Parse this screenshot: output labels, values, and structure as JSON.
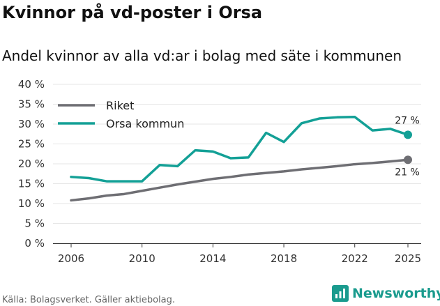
{
  "title": "Kvinnor på vd-poster i Orsa",
  "subtitle": "Andel kvinnor av alla vd:ar i bolag med säte i kommunen",
  "source": "Källa: Bolagsverket. Gäller aktiebolag.",
  "brand": {
    "name": "Newsworthy",
    "icon": "newsworthy-logo-icon",
    "color": "#1a9b8e"
  },
  "chart_data": {
    "type": "line",
    "x": [
      2006,
      2007,
      2008,
      2009,
      2010,
      2011,
      2012,
      2013,
      2014,
      2015,
      2016,
      2017,
      2018,
      2019,
      2020,
      2021,
      2022,
      2023,
      2024,
      2025
    ],
    "series": [
      {
        "name": "Riket",
        "color": "#6e6e73",
        "values": [
          10.8,
          11.3,
          12.0,
          12.4,
          13.2,
          14.0,
          14.8,
          15.5,
          16.2,
          16.7,
          17.3,
          17.7,
          18.1,
          18.6,
          19.0,
          19.4,
          19.9,
          20.2,
          20.6,
          21.0
        ],
        "end_label": "21 %"
      },
      {
        "name": "Orsa kommun",
        "color": "#13a096",
        "values": [
          16.7,
          16.4,
          15.6,
          15.6,
          15.6,
          19.7,
          19.4,
          23.4,
          23.1,
          21.4,
          21.6,
          27.8,
          25.5,
          30.2,
          31.4,
          31.7,
          31.8,
          28.4,
          28.8,
          27.3
        ],
        "end_label": "27 %"
      }
    ],
    "ylim": [
      0,
      40
    ],
    "yticks": [
      "0 %",
      "5 %",
      "10 %",
      "15 %",
      "20 %",
      "25 %",
      "30 %",
      "35 %",
      "40 %"
    ],
    "xticks": [
      "2006",
      "2010",
      "2014",
      "2018",
      "2022",
      "2025"
    ],
    "xlabel": "",
    "ylabel": "",
    "legend_position": "top-left"
  }
}
